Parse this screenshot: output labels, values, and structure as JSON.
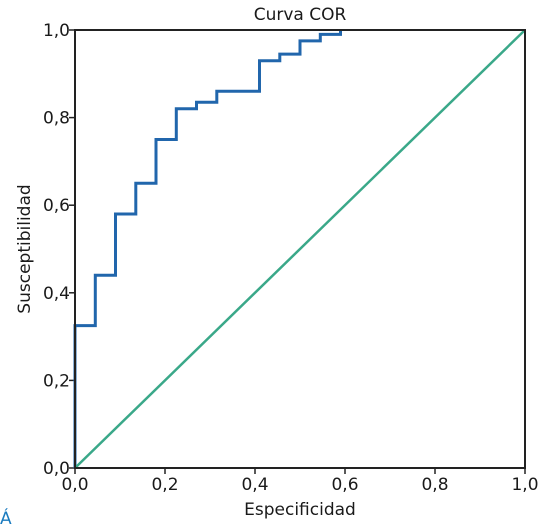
{
  "chart_data": {
    "type": "line",
    "title": "Curva COR",
    "xlabel": "Especificidad",
    "ylabel": "Susceptibilidad",
    "xlim": [
      0.0,
      1.0
    ],
    "ylim": [
      0.0,
      1.0
    ],
    "x_ticks": [
      "0,0",
      "0,2",
      "0,4",
      "0,6",
      "0,8",
      "1,0"
    ],
    "y_ticks": [
      "0,0",
      "0,2",
      "0,4",
      "0,6",
      "0,8",
      "1,0"
    ],
    "grid": false,
    "series": [
      {
        "color": "#2166ac",
        "style": "step",
        "x": [
          0.0,
          0.0,
          0.045,
          0.045,
          0.09,
          0.09,
          0.135,
          0.135,
          0.18,
          0.18,
          0.225,
          0.225,
          0.27,
          0.27,
          0.315,
          0.315,
          0.41,
          0.41,
          0.455,
          0.455,
          0.5,
          0.5,
          0.545,
          0.545,
          0.59,
          0.59
        ],
        "y": [
          0.0,
          0.325,
          0.325,
          0.44,
          0.44,
          0.58,
          0.58,
          0.65,
          0.65,
          0.75,
          0.75,
          0.82,
          0.82,
          0.835,
          0.835,
          0.86,
          0.86,
          0.93,
          0.93,
          0.945,
          0.945,
          0.975,
          0.975,
          0.99,
          0.99,
          1.0
        ]
      },
      {
        "color": "#3aa889",
        "style": "line",
        "x": [
          0.0,
          1.0
        ],
        "y": [
          0.0,
          1.0
        ]
      }
    ],
    "footer_fragment": "Á"
  }
}
